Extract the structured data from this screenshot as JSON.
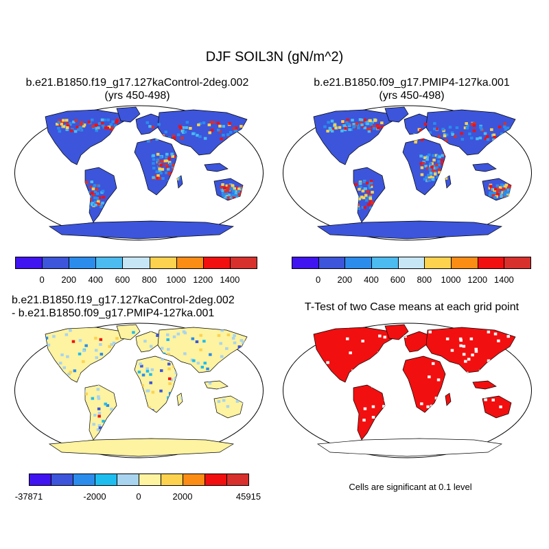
{
  "figure": {
    "title": "DJF SOIL3N (gN/m^2)",
    "panel_top_left": {
      "line1": "b.e21.B1850.f19_g17.127kaControl-2deg.002",
      "line2": "(yrs 450-498)"
    },
    "panel_top_right": {
      "line1": "b.e21.B1850.f09_g17.PMIP4-127ka.001",
      "line2": "(yrs 450-498)"
    },
    "panel_bottom_left": {
      "line1": "b.e21.B1850.f19_g17.127kaControl-2deg.002",
      "line2": "- b.e21.B1850.f09_g17.PMIP4-127ka.001"
    },
    "panel_bottom_right": {
      "line1": "T-Test of two Case means at each grid point",
      "note": "Cells are significant at 0.1 level"
    }
  },
  "colorbar_abs": {
    "colors": [
      "#3f14f0",
      "#3c55db",
      "#2b8cec",
      "#4cbbf0",
      "#c6e6f5",
      "#fcd24e",
      "#fb8c14",
      "#f20f0f",
      "#d8302c"
    ],
    "labels": [
      "0",
      "200",
      "400",
      "600",
      "800",
      "1000",
      "1200",
      "1400"
    ]
  },
  "colorbar_diff": {
    "colors": [
      "#3f14f0",
      "#3c55db",
      "#2b8cec",
      "#1ebdf0",
      "#a8d4ef",
      "#fdf3a0",
      "#fcd24e",
      "#fb8c14",
      "#f20f0f",
      "#d8302c"
    ],
    "labels": [
      "-37871",
      "-2000",
      "0",
      "2000",
      "45915"
    ]
  },
  "map_colors": {
    "ocean": "#ffffff",
    "land_abs": "#3c55db",
    "land_diff": "#fdf3a0",
    "land_ttest": "#f20f0f",
    "coast": "#000000"
  }
}
